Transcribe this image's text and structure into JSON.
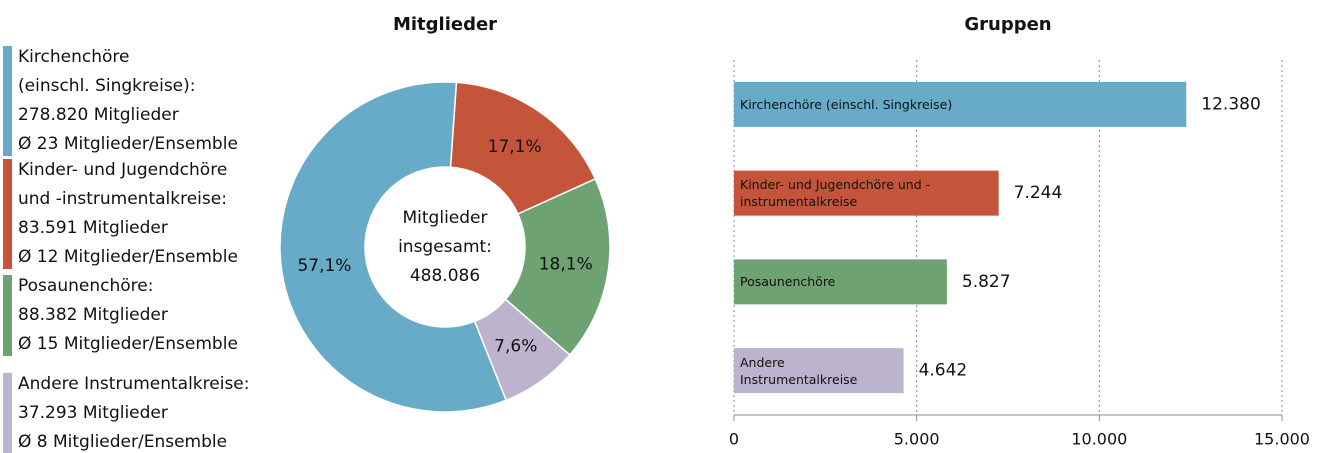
{
  "chart_data": [
    {
      "type": "donut",
      "title": "Mitglieder",
      "categories": [
        "Kirchenchöre",
        "Kinder- und Jugendchöre",
        "Posaunenchöre",
        "Andere Instrumentalkreise"
      ],
      "values": [
        57.1,
        17.1,
        18.1,
        7.6
      ],
      "value_labels": [
        "57,1%",
        "17,1%",
        "18,1%",
        "7,6%"
      ],
      "colors": [
        "#67abc8",
        "#c4553b",
        "#6fa273",
        "#bcb3cd"
      ],
      "legend": [
        [
          "Kirchenchöre",
          "(einschl. Singkreise):",
          "278.820 Mitglieder",
          "Ø 23 Mitglieder/Ensemble"
        ],
        [
          "Kinder- und Jugendchöre",
          "und -instrumentalkreise:",
          "83.591 Mitglieder",
          "Ø 12 Mitglieder/Ensemble"
        ],
        [
          "Posaunenchöre:",
          "88.382 Mitglieder",
          "Ø 15 Mitglieder/Ensemble"
        ],
        [
          "Andere Instrumentalkreise:",
          "37.293 Mitglieder",
          "Ø 8 Mitglieder/Ensemble"
        ]
      ],
      "center_label": [
        "Mitglieder",
        "insgesamt:",
        "488.086"
      ]
    },
    {
      "type": "hbar",
      "title": "Gruppen",
      "categories": [
        "Kirchenchöre (einschl. Singkreise)",
        "Kinder- und Jugendchöre und -instrumentalkreise",
        "Posaunenchöre",
        "Andere Instrumentalkreise"
      ],
      "values": [
        12380,
        7244,
        5827,
        4642
      ],
      "value_labels": [
        "12.380",
        "7.244",
        "5.827",
        "4.642"
      ],
      "colors": [
        "#67abc8",
        "#c4553b",
        "#6fa273",
        "#bcb3cd"
      ],
      "xlim": [
        0,
        15000
      ],
      "xticks": [
        0,
        {
          "value": 5000,
          "label": "5.000"
        },
        {
          "value": 10000,
          "label": "10.000"
        },
        {
          "value": 15000,
          "label": "15.000"
        }
      ],
      "grid": true
    }
  ]
}
